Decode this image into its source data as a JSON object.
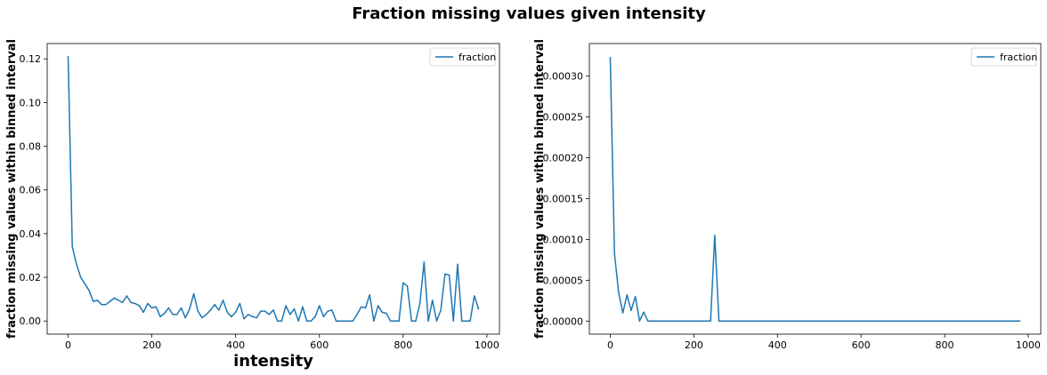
{
  "figure": {
    "title": "Fraction missing values given intensity",
    "line_color": "#1f77b4"
  },
  "chart_data": [
    {
      "type": "line",
      "title": "",
      "xlabel": "intensity",
      "ylabel": "fraction missing values within binned interval",
      "xlim": [
        -50,
        1030
      ],
      "ylim": [
        -0.006,
        0.127
      ],
      "xticks": [
        0,
        200,
        400,
        600,
        800,
        1000
      ],
      "yticks": [
        0.0,
        0.02,
        0.04,
        0.06,
        0.08,
        0.1,
        0.12
      ],
      "ytick_labels": [
        "0.00",
        "0.02",
        "0.04",
        "0.06",
        "0.08",
        "0.10",
        "0.12"
      ],
      "grid": false,
      "legend_position": "top-right",
      "series": [
        {
          "name": "fraction",
          "x": [
            0,
            10,
            20,
            30,
            40,
            50,
            60,
            70,
            80,
            90,
            100,
            110,
            120,
            130,
            140,
            150,
            160,
            170,
            180,
            190,
            200,
            210,
            220,
            230,
            240,
            250,
            260,
            270,
            280,
            290,
            300,
            310,
            320,
            330,
            340,
            350,
            360,
            370,
            380,
            390,
            400,
            410,
            420,
            430,
            440,
            450,
            460,
            470,
            480,
            490,
            500,
            510,
            520,
            530,
            540,
            550,
            560,
            570,
            580,
            590,
            600,
            610,
            620,
            630,
            640,
            650,
            660,
            670,
            680,
            690,
            700,
            710,
            720,
            730,
            740,
            750,
            760,
            770,
            780,
            790,
            800,
            810,
            820,
            830,
            840,
            850,
            860,
            870,
            880,
            890,
            900,
            910,
            920,
            930,
            940,
            950,
            960,
            970,
            980
          ],
          "values": [
            0.121,
            0.034,
            0.026,
            0.02,
            0.017,
            0.014,
            0.009,
            0.0095,
            0.0075,
            0.0075,
            0.009,
            0.0105,
            0.0095,
            0.0085,
            0.0115,
            0.0085,
            0.008,
            0.007,
            0.004,
            0.008,
            0.006,
            0.0065,
            0.002,
            0.0035,
            0.006,
            0.003,
            0.003,
            0.006,
            0.0015,
            0.0055,
            0.0125,
            0.0045,
            0.0015,
            0.003,
            0.005,
            0.0075,
            0.005,
            0.0095,
            0.004,
            0.002,
            0.004,
            0.008,
            0.001,
            0.003,
            0.002,
            0.0015,
            0.0045,
            0.0045,
            0.003,
            0.005,
            0.0,
            0.0,
            0.007,
            0.003,
            0.0055,
            0.0,
            0.0065,
            0.0,
            0.0,
            0.002,
            0.007,
            0.002,
            0.0045,
            0.005,
            0.0,
            0.0,
            0.0,
            0.0,
            0.0,
            0.003,
            0.0065,
            0.006,
            0.012,
            0.0,
            0.007,
            0.004,
            0.0035,
            0.0,
            0.0,
            0.0,
            0.0175,
            0.016,
            0.0,
            0.0,
            0.008,
            0.027,
            0.0,
            0.0095,
            0.0,
            0.005,
            0.0215,
            0.021,
            0.0,
            0.026,
            0.0,
            0.0,
            0.0,
            0.0115,
            0.0055
          ]
        }
      ]
    },
    {
      "type": "line",
      "title": "",
      "xlabel": "",
      "ylabel": "fraction missing values within binned interval",
      "xlim": [
        -50,
        1030
      ],
      "ylim": [
        -1.6e-05,
        0.00034
      ],
      "xticks": [
        0,
        200,
        400,
        600,
        800,
        1000
      ],
      "yticks": [
        0.0,
        5e-05,
        0.0001,
        0.00015,
        0.0002,
        0.00025,
        0.0003
      ],
      "ytick_labels": [
        "0.00000",
        "0.00005",
        "0.00010",
        "0.00015",
        "0.00020",
        "0.00025",
        "0.00030"
      ],
      "grid": false,
      "legend_position": "top-right",
      "series": [
        {
          "name": "fraction",
          "x": [
            0,
            10,
            20,
            30,
            40,
            50,
            60,
            70,
            80,
            90,
            100,
            110,
            120,
            130,
            140,
            150,
            160,
            170,
            180,
            190,
            200,
            210,
            220,
            230,
            240,
            250,
            260,
            270,
            280,
            290,
            300,
            310,
            320,
            330,
            340,
            350,
            360,
            370,
            380,
            390,
            400,
            410,
            420,
            430,
            440,
            450,
            460,
            470,
            480,
            490,
            500,
            510,
            520,
            530,
            540,
            550,
            560,
            570,
            580,
            590,
            600,
            610,
            620,
            630,
            640,
            650,
            660,
            670,
            680,
            690,
            700,
            710,
            720,
            730,
            740,
            750,
            760,
            770,
            780,
            790,
            800,
            810,
            820,
            830,
            840,
            850,
            860,
            870,
            880,
            890,
            900,
            910,
            920,
            930,
            940,
            950,
            960,
            970,
            980
          ],
          "values": [
            0.000323,
            8.3e-05,
            3.5e-05,
            1e-05,
            3.2e-05,
            1.3e-05,
            3e-05,
            0.0,
            1.1e-05,
            0.0,
            0.0,
            0.0,
            0.0,
            0.0,
            0.0,
            0.0,
            0.0,
            0.0,
            0.0,
            0.0,
            0.0,
            0.0,
            0.0,
            0.0,
            0.0,
            0.000105,
            0.0,
            0.0,
            0.0,
            0.0,
            0.0,
            0.0,
            0.0,
            0.0,
            0.0,
            0.0,
            0.0,
            0.0,
            0.0,
            0.0,
            0.0,
            0.0,
            0.0,
            0.0,
            0.0,
            0.0,
            0.0,
            0.0,
            0.0,
            0.0,
            0.0,
            0.0,
            0.0,
            0.0,
            0.0,
            0.0,
            0.0,
            0.0,
            0.0,
            0.0,
            0.0,
            0.0,
            0.0,
            0.0,
            0.0,
            0.0,
            0.0,
            0.0,
            0.0,
            0.0,
            0.0,
            0.0,
            0.0,
            0.0,
            0.0,
            0.0,
            0.0,
            0.0,
            0.0,
            0.0,
            0.0,
            0.0,
            0.0,
            0.0,
            0.0,
            0.0,
            0.0,
            0.0,
            0.0,
            0.0,
            0.0,
            0.0,
            0.0,
            0.0,
            0.0,
            0.0,
            0.0,
            0.0,
            0.0
          ]
        }
      ]
    }
  ]
}
